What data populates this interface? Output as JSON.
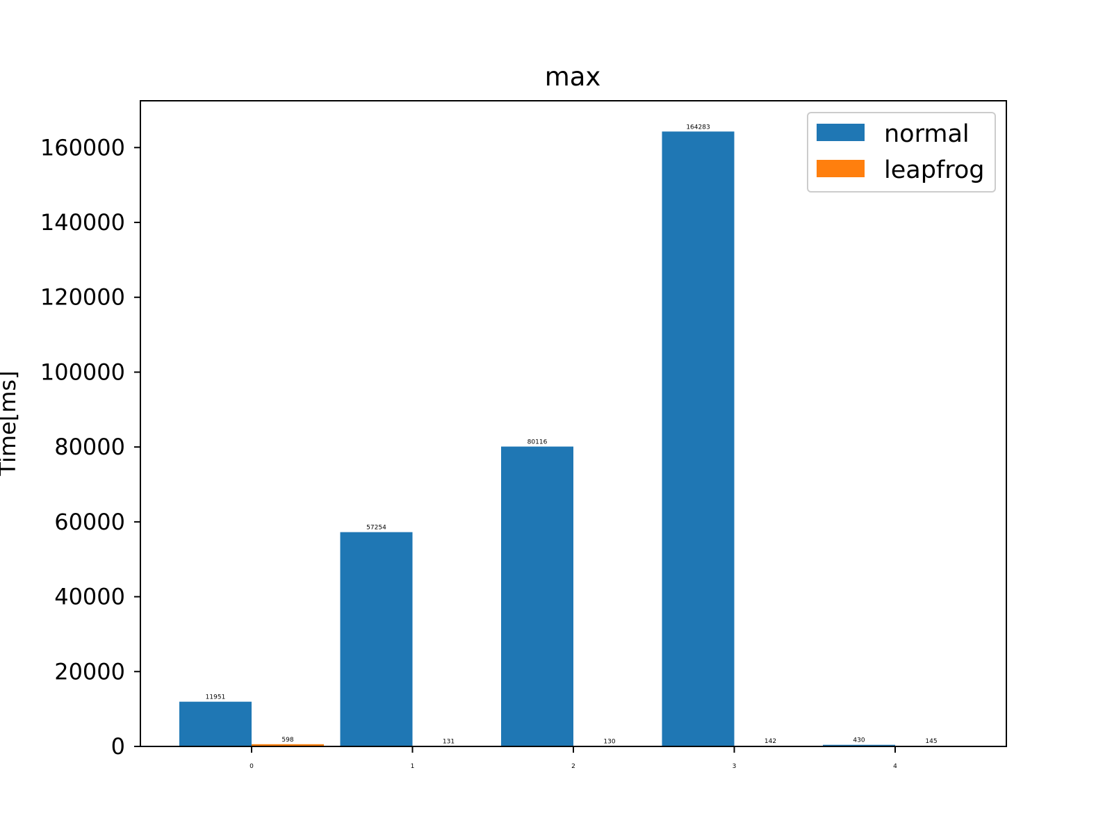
{
  "chart_data": {
    "type": "bar",
    "title": "max",
    "xlabel": "",
    "ylabel": "Time[ms]",
    "categories": [
      "0",
      "1",
      "2",
      "3",
      "4"
    ],
    "series": [
      {
        "name": "normal",
        "color": "#1f77b4",
        "values": [
          11951,
          57254,
          80116,
          164283,
          430
        ]
      },
      {
        "name": "leapfrog",
        "color": "#ff7f0e",
        "values": [
          598,
          131,
          130,
          142,
          145
        ]
      }
    ],
    "value_labels": {
      "normal": [
        "11951",
        "57254",
        "80116",
        "164283",
        "430"
      ],
      "leapfrog": [
        "598",
        "131",
        "130",
        "142",
        "145"
      ]
    },
    "yticks": [
      0,
      20000,
      40000,
      60000,
      80000,
      100000,
      120000,
      140000,
      160000
    ],
    "ytick_labels": [
      "0",
      "20000",
      "40000",
      "60000",
      "80000",
      "100000",
      "120000",
      "140000",
      "160000"
    ],
    "ylim": [
      0,
      172500
    ],
    "grid": false,
    "legend_position": "top-right"
  }
}
